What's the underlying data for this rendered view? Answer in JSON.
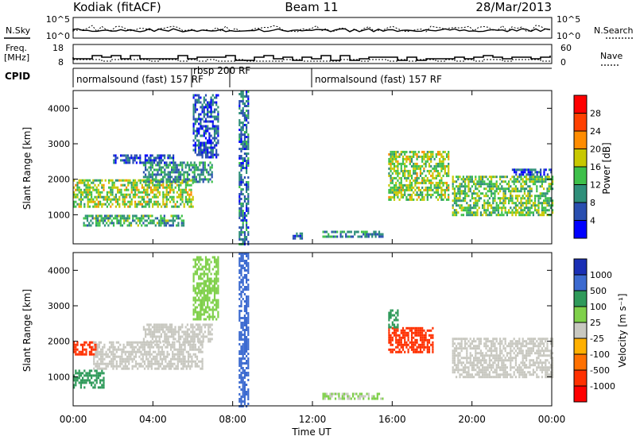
{
  "header": {
    "station": "Kodiak (fitACF)",
    "beam": "Beam 11",
    "date": "28/Mar/2013"
  },
  "top_panel": {
    "left_label": "N.Sky",
    "right_label": "N.Search",
    "left_ticks": [
      "10^5",
      "10^0"
    ],
    "right_ticks": [
      "10^5",
      "10^0"
    ]
  },
  "freq_panel": {
    "left_label_1": "Freq.",
    "left_label_2": "[MHz]",
    "right_label": "Nave",
    "left_ticks": [
      "18",
      "8"
    ],
    "right_ticks": [
      "60",
      "0"
    ]
  },
  "cpid": {
    "label": "CPID",
    "segments": [
      {
        "text": "normalsound (fast) 157 RF"
      },
      {
        "text": "rbsp 200 RF"
      },
      {
        "text": "normalsound (fast) 157 RF"
      }
    ]
  },
  "axes": {
    "ylabel": "Slant Range [km]",
    "xlabel": "Time UT",
    "y_ticks": [
      "1000",
      "2000",
      "3000",
      "4000"
    ],
    "x_ticks": [
      "00:00",
      "04:00",
      "08:00",
      "12:00",
      "16:00",
      "20:00",
      "00:00"
    ]
  },
  "power_bar": {
    "label": "Power [dB]",
    "ticks": [
      "4",
      "8",
      "12",
      "16",
      "20",
      "24",
      "28"
    ],
    "colors": [
      "#0000ff",
      "#2a4fb0",
      "#2f8f7a",
      "#3ec04a",
      "#c8c800",
      "#ff8c00",
      "#ff4000",
      "#ff0000"
    ]
  },
  "velocity_bar": {
    "label": "Velocity [m s⁻¹]",
    "ticks": [
      "1000",
      "500",
      "100",
      "25",
      "-25",
      "-100",
      "-500",
      "-1000"
    ],
    "colors": [
      "#1a2fb5",
      "#3c6ad0",
      "#2f9a5a",
      "#7fd04a",
      "#c8c8c0",
      "#ffb000",
      "#ff7000",
      "#ff3000",
      "#ff0000"
    ]
  },
  "chart_data": [
    {
      "type": "heatmap",
      "panel": "power",
      "x_range_hours": [
        0,
        24
      ],
      "y_range_km": [
        180,
        4500
      ],
      "unit": "dB",
      "regions": [
        {
          "t_start": 0.0,
          "t_end": 6.0,
          "range_start": 1200,
          "range_end": 2000,
          "level": 16
        },
        {
          "t_start": 0.5,
          "t_end": 5.5,
          "range_start": 700,
          "range_end": 1000,
          "level": 12
        },
        {
          "t_start": 3.5,
          "t_end": 7.0,
          "range_start": 1900,
          "range_end": 2500,
          "level": 10
        },
        {
          "t_start": 2.0,
          "t_end": 5.0,
          "range_start": 2450,
          "range_end": 2700,
          "level": 6
        },
        {
          "t_start": 6.0,
          "t_end": 7.3,
          "range_start": 2600,
          "range_end": 4400,
          "level": 6
        },
        {
          "t_start": 8.3,
          "t_end": 8.8,
          "range_start": 200,
          "range_end": 4500,
          "level": 8
        },
        {
          "t_start": 11.0,
          "t_end": 11.5,
          "range_start": 300,
          "range_end": 500,
          "level": 8
        },
        {
          "t_start": 12.5,
          "t_end": 15.5,
          "range_start": 350,
          "range_end": 550,
          "level": 10
        },
        {
          "t_start": 15.8,
          "t_end": 18.8,
          "range_start": 1400,
          "range_end": 2800,
          "level": 16
        },
        {
          "t_start": 19.0,
          "t_end": 24.0,
          "range_start": 1000,
          "range_end": 2100,
          "level": 14
        },
        {
          "t_start": 22.0,
          "t_end": 24.0,
          "range_start": 2100,
          "range_end": 2300,
          "level": 6
        }
      ]
    },
    {
      "type": "heatmap",
      "panel": "velocity",
      "x_range_hours": [
        0,
        24
      ],
      "y_range_km": [
        180,
        4500
      ],
      "unit": "m s-1",
      "regions": [
        {
          "t_start": 0.0,
          "t_end": 1.2,
          "range_start": 1600,
          "range_end": 2000,
          "level": -600
        },
        {
          "t_start": 0.0,
          "t_end": 1.5,
          "range_start": 700,
          "range_end": 1200,
          "level": 120
        },
        {
          "t_start": 1.0,
          "t_end": 6.5,
          "range_start": 1200,
          "range_end": 2000,
          "level": 0
        },
        {
          "t_start": 3.5,
          "t_end": 7.0,
          "range_start": 2000,
          "range_end": 2500,
          "level": 0
        },
        {
          "t_start": 6.0,
          "t_end": 7.3,
          "range_start": 2600,
          "range_end": 4400,
          "level": 60
        },
        {
          "t_start": 8.3,
          "t_end": 8.8,
          "range_start": 200,
          "range_end": 4500,
          "level": 800
        },
        {
          "t_start": 12.5,
          "t_end": 15.5,
          "range_start": 350,
          "range_end": 550,
          "level": 30
        },
        {
          "t_start": 15.8,
          "t_end": 18.0,
          "range_start": 1700,
          "range_end": 2400,
          "level": -700
        },
        {
          "t_start": 15.8,
          "t_end": 16.3,
          "range_start": 2400,
          "range_end": 2900,
          "level": 120
        },
        {
          "t_start": 19.0,
          "t_end": 24.0,
          "range_start": 1000,
          "range_end": 2100,
          "level": 0
        }
      ]
    }
  ]
}
